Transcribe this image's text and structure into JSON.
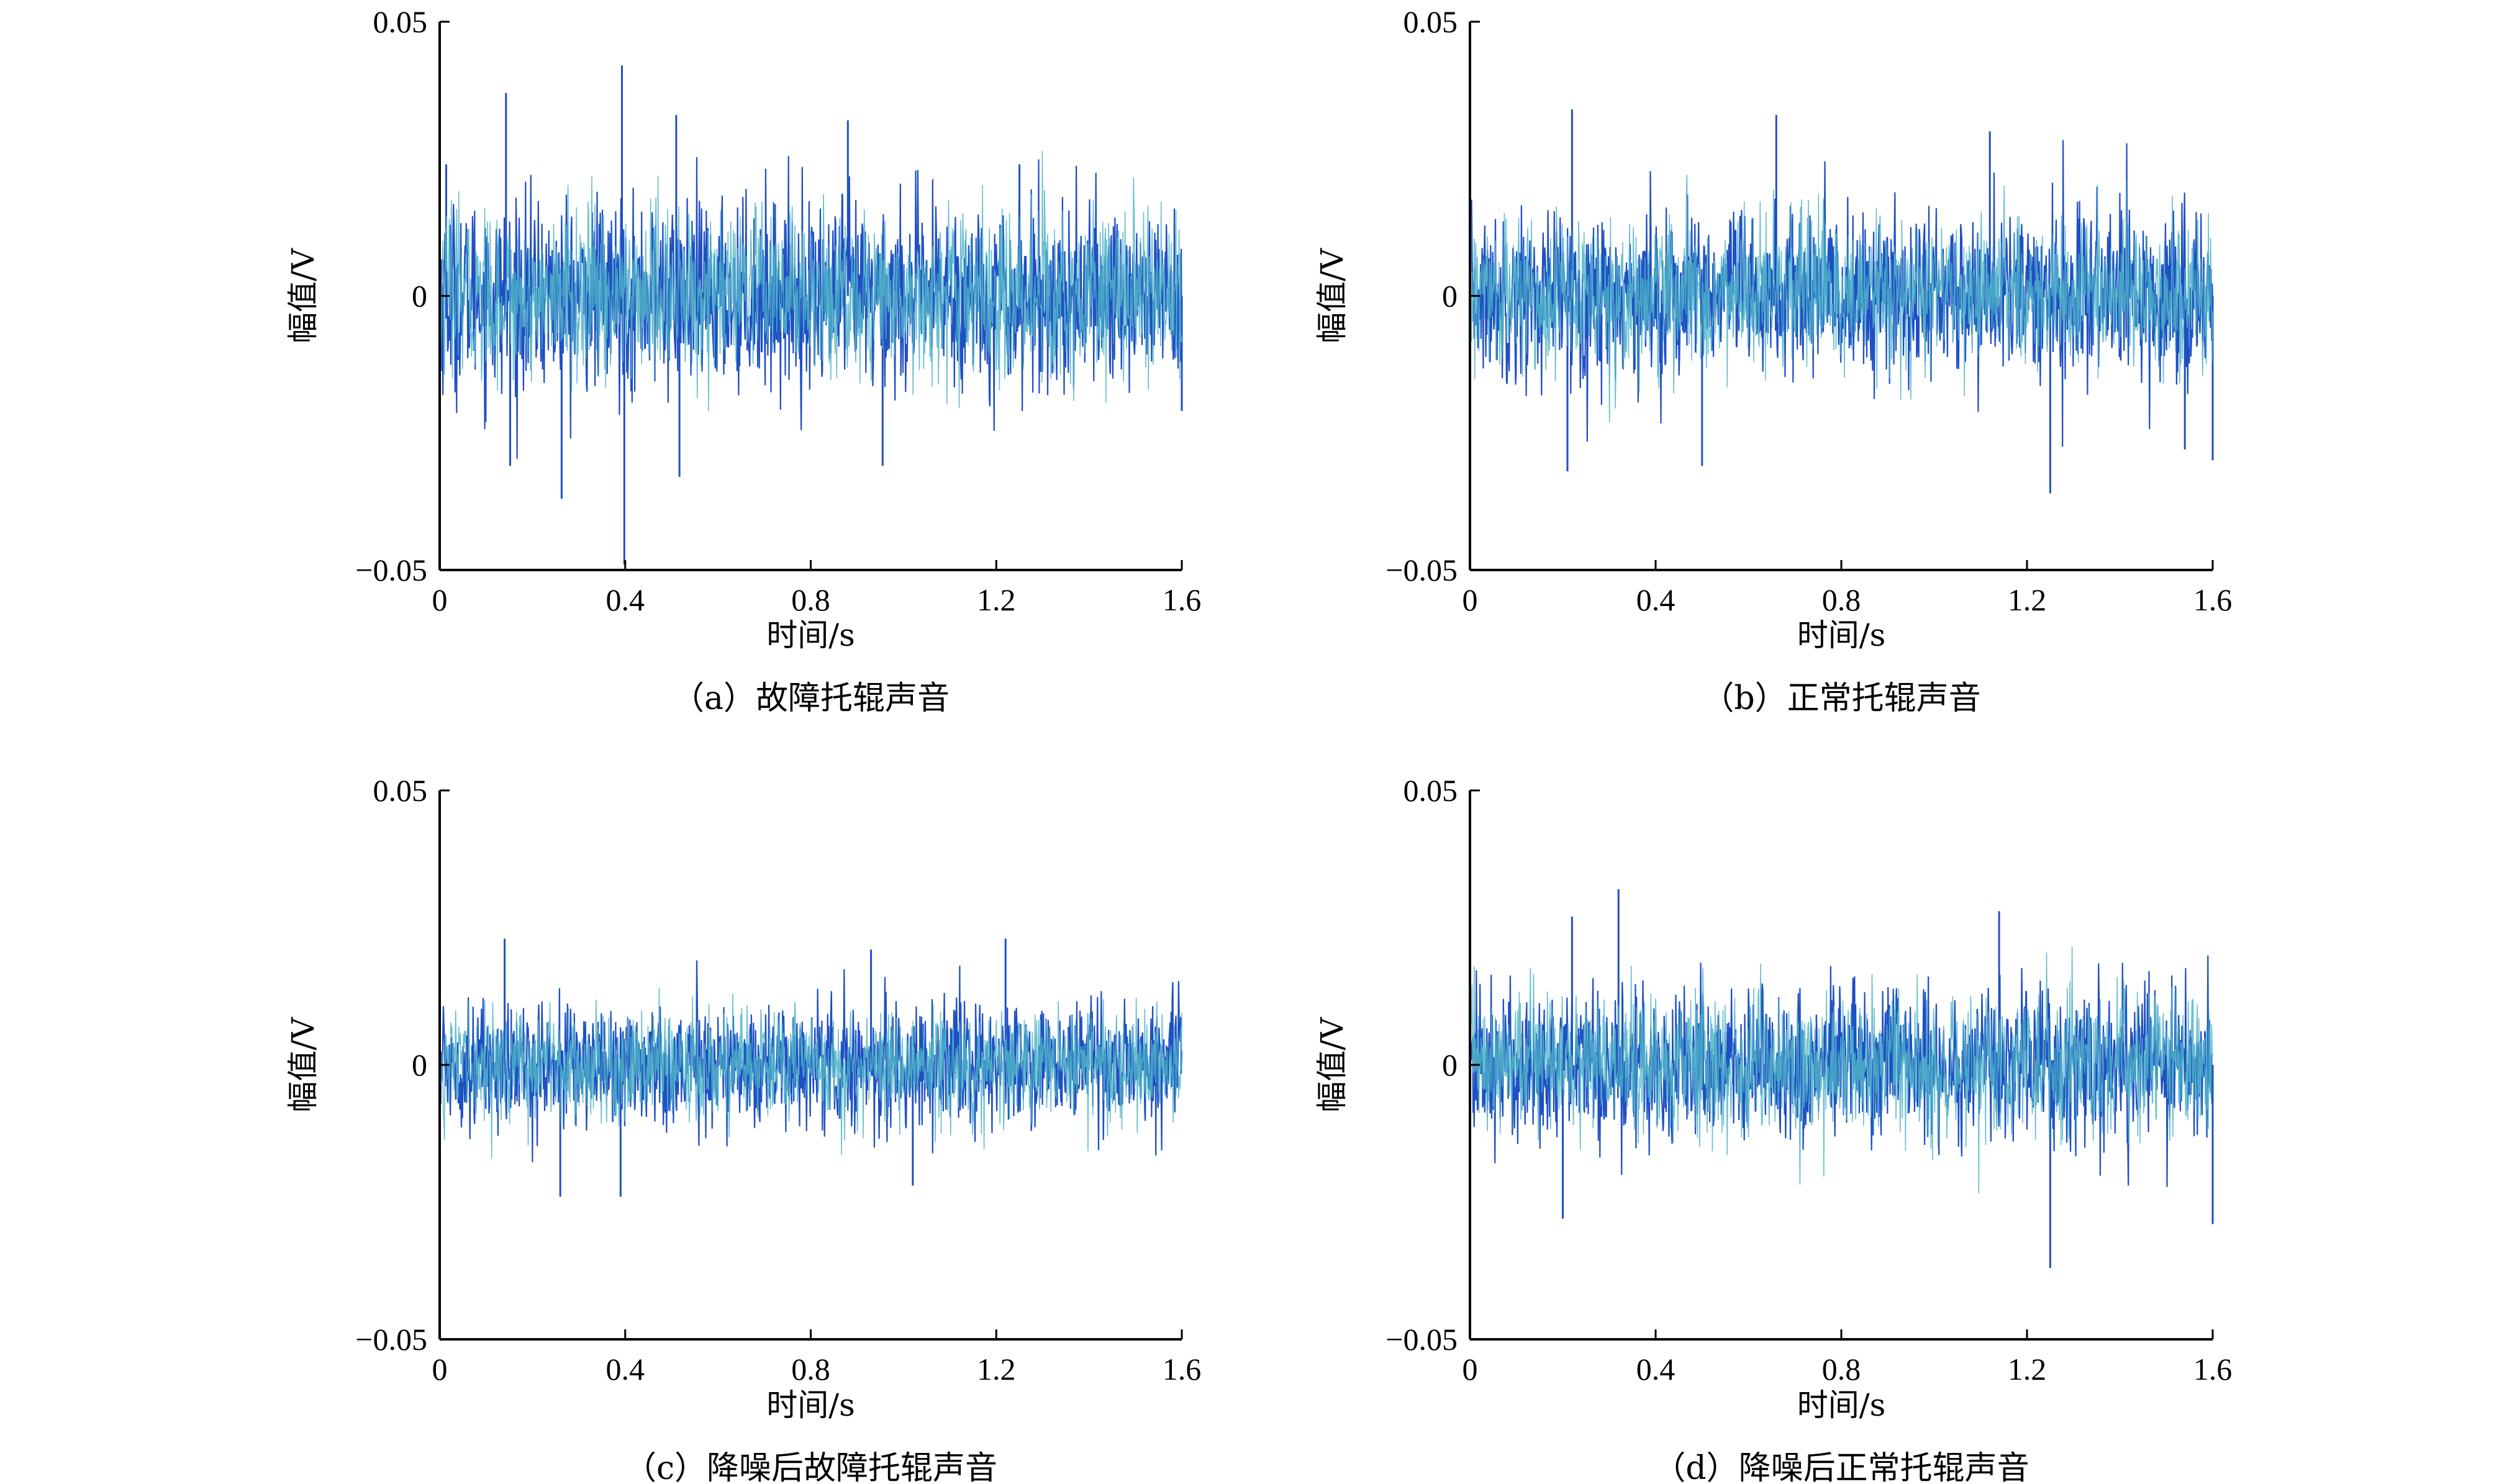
{
  "chart_data": [
    {
      "type": "line",
      "caption": "（a）故障托辊声音",
      "xlabel": "时间/s",
      "ylabel": "幅值/V",
      "xlim": [
        0,
        1.6
      ],
      "ylim": [
        -0.05,
        0.05
      ],
      "x_ticks": [
        "0",
        "0.4",
        "0.8",
        "1.2",
        "1.6"
      ],
      "y_ticks": [
        "0.05",
        "0",
        "−0.05"
      ],
      "grid": false,
      "series": [
        {
          "color": "#1f4fc4",
          "envelope_rms": 0.0085,
          "peaks": [
            [
              0.014,
              0.024
            ],
            [
              0.143,
              0.037
            ],
            [
              0.152,
              -0.031
            ],
            [
              0.263,
              -0.037
            ],
            [
              0.393,
              0.042
            ],
            [
              0.398,
              -0.049
            ],
            [
              0.51,
              0.033
            ],
            [
              0.517,
              -0.033
            ],
            [
              0.88,
              0.032
            ],
            [
              0.955,
              -0.031
            ],
            [
              1.25,
              0.024
            ],
            [
              1.6,
              -0.021
            ]
          ]
        },
        {
          "color": "#4fb3c8",
          "envelope_rms": 0.0075,
          "peaks": []
        }
      ]
    },
    {
      "type": "line",
      "caption": "（b）正常托辊声音",
      "xlabel": "时间/s",
      "ylabel": "幅值/V",
      "xlim": [
        0,
        1.6
      ],
      "ylim": [
        -0.05,
        0.05
      ],
      "x_ticks": [
        "0",
        "0.4",
        "0.8",
        "1.2",
        "1.6"
      ],
      "y_ticks": [
        "0.05",
        "0",
        "−0.05"
      ],
      "grid": false,
      "series": [
        {
          "color": "#1f4fc4",
          "envelope_rms": 0.0075,
          "peaks": [
            [
              0.22,
              0.034
            ],
            [
              0.21,
              -0.032
            ],
            [
              0.66,
              0.033
            ],
            [
              0.5,
              -0.031
            ],
            [
              1.12,
              0.03
            ],
            [
              1.25,
              -0.036
            ],
            [
              1.54,
              -0.028
            ],
            [
              1.6,
              -0.03
            ]
          ]
        },
        {
          "color": "#4fb3c8",
          "envelope_rms": 0.0068,
          "peaks": []
        }
      ]
    },
    {
      "type": "line",
      "caption": "（c）降噪后故障托辊声音",
      "xlabel": "时间/s",
      "ylabel": "幅值/V",
      "xlim": [
        0,
        1.6
      ],
      "ylim": [
        -0.05,
        0.05
      ],
      "x_ticks": [
        "0",
        "0.4",
        "0.8",
        "1.2",
        "1.6"
      ],
      "y_ticks": [
        "0.05",
        "0",
        "−0.05"
      ],
      "grid": false,
      "series": [
        {
          "color": "#1f4fc4",
          "envelope_rms": 0.0055,
          "peaks": [
            [
              0.14,
              0.023
            ],
            [
              0.39,
              -0.024
            ],
            [
              0.26,
              -0.024
            ],
            [
              0.93,
              0.021
            ],
            [
              1.22,
              0.023
            ],
            [
              1.02,
              -0.022
            ]
          ]
        },
        {
          "color": "#4fb3c8",
          "envelope_rms": 0.005,
          "peaks": []
        }
      ]
    },
    {
      "type": "line",
      "caption": "（d）降噪后正常托辊声音",
      "xlabel": "时间/s",
      "ylabel": "幅值/V",
      "xlim": [
        0,
        1.6
      ],
      "ylim": [
        -0.05,
        0.05
      ],
      "x_ticks": [
        "0",
        "0.4",
        "0.8",
        "1.2",
        "1.6"
      ],
      "y_ticks": [
        "0.05",
        "0",
        "−0.05"
      ],
      "grid": false,
      "series": [
        {
          "color": "#1f4fc4",
          "envelope_rms": 0.007,
          "peaks": [
            [
              0.22,
              0.027
            ],
            [
              0.32,
              0.032
            ],
            [
              0.2,
              -0.028
            ],
            [
              1.14,
              0.028
            ],
            [
              1.25,
              -0.037
            ],
            [
              1.6,
              -0.029
            ]
          ]
        },
        {
          "color": "#4fb3c8",
          "envelope_rms": 0.0064,
          "peaks": []
        }
      ]
    }
  ]
}
